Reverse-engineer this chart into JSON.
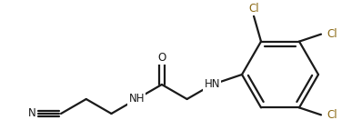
{
  "bg_color": "#ffffff",
  "bond_color": "#1a1a1a",
  "cl_color": "#8B6914",
  "n_color": "#1a1a1a",
  "o_color": "#1a1a1a",
  "line_width": 1.6,
  "font_size": 8.5,
  "figsize": [
    3.98,
    1.54
  ],
  "dpi": 100,
  "xlim": [
    0,
    398
  ],
  "ylim": [
    0,
    154
  ]
}
